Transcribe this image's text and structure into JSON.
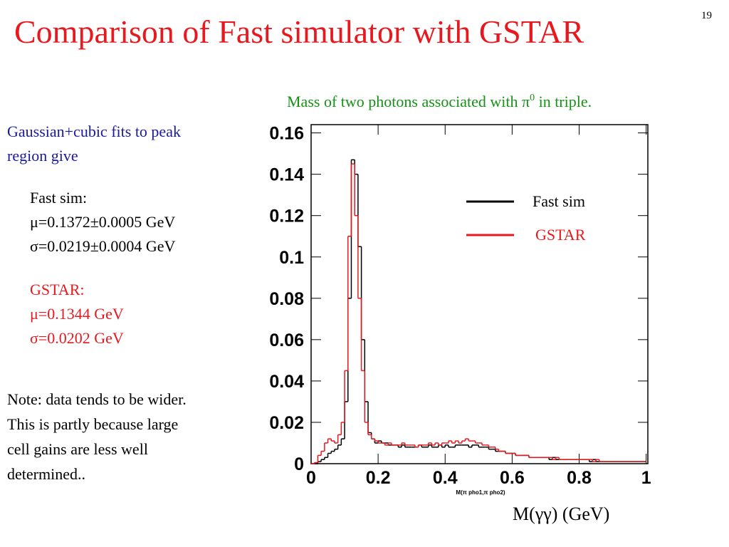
{
  "slide": {
    "page_number": "19",
    "title": "Comparison of Fast simulator with GSTAR",
    "fit_intro": [
      "Gaussian+cubic fits to peak",
      "region give"
    ],
    "fast_fit": [
      "Fast sim:",
      "μ=0.1372±0.0005 GeV",
      "σ=0.0219±0.0004 GeV"
    ],
    "gstar_fit": [
      "GSTAR:",
      "μ=0.1344 GeV",
      "σ=0.0202 GeV"
    ],
    "note": [
      "Note: data tends to be wider.",
      "This is partly because large",
      "cell gains are less well",
      "determined.."
    ],
    "x_unit_label": "M(γγ) (GeV)"
  },
  "chart_data": {
    "type": "histogram",
    "title": {
      "text": "Mass of two photons associated with π",
      "sup": "0",
      "rest": " in triple."
    },
    "xlabel": "M(π pho1,π pho2)",
    "bins": [
      0,
      0.01,
      0.02,
      0.03,
      0.04,
      0.05,
      0.06,
      0.07,
      0.08,
      0.09,
      0.1,
      0.11,
      0.12,
      0.13,
      0.14,
      0.15,
      0.16,
      0.17,
      0.18,
      0.19,
      0.2,
      0.21,
      0.22,
      0.23,
      0.24,
      0.25,
      0.26,
      0.27,
      0.28,
      0.29,
      0.3,
      0.31,
      0.32,
      0.33,
      0.34,
      0.35,
      0.36,
      0.37,
      0.38,
      0.39,
      0.4,
      0.41,
      0.42,
      0.43,
      0.44,
      0.45,
      0.46,
      0.47,
      0.48,
      0.49,
      0.5,
      0.51,
      0.52,
      0.53,
      0.54,
      0.55,
      0.56,
      0.57,
      0.58,
      0.59,
      0.6,
      0.61,
      0.62,
      0.63,
      0.64,
      0.65,
      0.66,
      0.67,
      0.68,
      0.69,
      0.7,
      0.71,
      0.72,
      0.73,
      0.74,
      0.75,
      0.76,
      0.77,
      0.78,
      0.79,
      0.8,
      0.81,
      0.82,
      0.83,
      0.84,
      0.85,
      0.86,
      0.87,
      0.88,
      0.89,
      0.9,
      0.91,
      0.92,
      0.93,
      0.94,
      0.95,
      0.96,
      0.97,
      0.98,
      0.99,
      1
    ],
    "series": [
      {
        "name": "Fast sim",
        "color": "#000000",
        "values": [
          0,
          0,
          0.001,
          0.002,
          0.003,
          0.005,
          0.006,
          0.007,
          0.009,
          0.012,
          0.03,
          0.08,
          0.147,
          0.14,
          0.105,
          0.06,
          0.03,
          0.015,
          0.012,
          0.01,
          0.011,
          0.01,
          0.01,
          0.009,
          0.009,
          0.009,
          0.008,
          0.009,
          0.008,
          0.008,
          0.008,
          0.008,
          0.009,
          0.008,
          0.008,
          0.009,
          0.008,
          0.008,
          0.009,
          0.008,
          0.009,
          0.008,
          0.008,
          0.009,
          0.009,
          0.009,
          0.009,
          0.008,
          0.009,
          0.009,
          0.008,
          0.008,
          0.008,
          0.007,
          0.007,
          0.006,
          0.006,
          0.006,
          0.005,
          0.005,
          0.005,
          0.004,
          0.004,
          0.004,
          0.004,
          0.003,
          0.003,
          0.003,
          0.003,
          0.003,
          0.003,
          0.002,
          0.003,
          0.002,
          0.002,
          0.002,
          0.002,
          0.002,
          0.002,
          0.002,
          0.002,
          0.002,
          0.002,
          0.001,
          0.002,
          0.001,
          0.001,
          0.001,
          0.001,
          0.001,
          0.001,
          0.001,
          0.001,
          0.001,
          0.001,
          0.001,
          0.001,
          0.001,
          0.001,
          0.001
        ]
      },
      {
        "name": "GSTAR",
        "color": "#e8191e",
        "values": [
          0,
          0.0005,
          0.004,
          0.006,
          0.01,
          0.012,
          0.011,
          0.01,
          0.014,
          0.02,
          0.045,
          0.11,
          0.145,
          0.12,
          0.08,
          0.045,
          0.02,
          0.014,
          0.012,
          0.011,
          0.01,
          0.01,
          0.009,
          0.01,
          0.009,
          0.009,
          0.009,
          0.01,
          0.009,
          0.009,
          0.009,
          0.008,
          0.009,
          0.009,
          0.009,
          0.01,
          0.009,
          0.01,
          0.009,
          0.01,
          0.01,
          0.011,
          0.01,
          0.011,
          0.01,
          0.011,
          0.012,
          0.011,
          0.011,
          0.01,
          0.01,
          0.009,
          0.009,
          0.008,
          0.008,
          0.007,
          0.006,
          0.006,
          0.005,
          0.005,
          0.005,
          0.004,
          0.004,
          0.004,
          0.004,
          0.003,
          0.003,
          0.003,
          0.003,
          0.003,
          0.003,
          0.003,
          0.002,
          0.003,
          0.002,
          0.002,
          0.002,
          0.002,
          0.002,
          0.002,
          0.002,
          0.002,
          0.002,
          0.002,
          0.001,
          0.002,
          0.001,
          0.001,
          0.001,
          0.001,
          0.001,
          0.001,
          0.001,
          0.001,
          0.001,
          0.001,
          0.001,
          0.001,
          0.001,
          0.001
        ]
      }
    ],
    "xlim": [
      0,
      1.005
    ],
    "ylim": [
      0,
      0.164
    ],
    "xticks": [
      0,
      0.2,
      0.4,
      0.6,
      0.8,
      1
    ],
    "yticks": [
      0,
      0.02,
      0.04,
      0.06,
      0.08,
      0.1,
      0.12,
      0.14,
      0.16
    ]
  }
}
